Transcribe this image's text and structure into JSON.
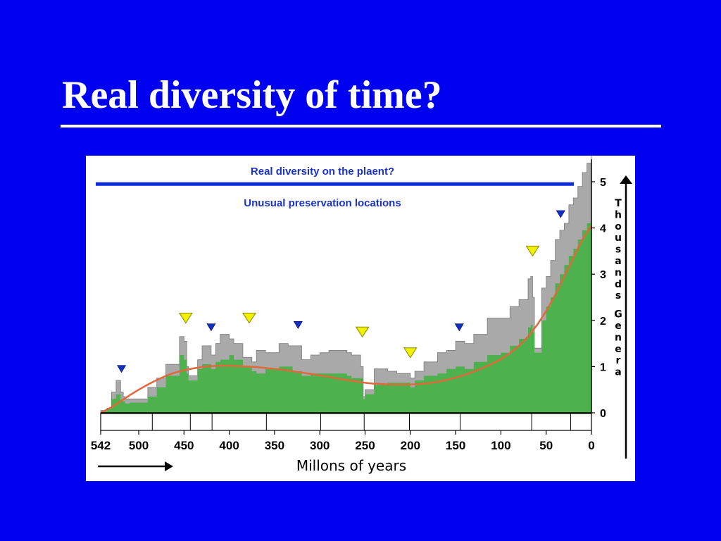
{
  "slide": {
    "title": "Real diversity of time?"
  },
  "colors": {
    "background": "#0000f0",
    "panel": "#ffffff",
    "real_diversity_line": "#0b2bdd",
    "observed_fill": "#a9a9a9",
    "sampled_fill": "#4db24d",
    "trend_line": "#e0683a",
    "marker_yellow": "#f2f200",
    "marker_blue": "#1030c0",
    "label_blue": "#1a33c7"
  },
  "chart_data": {
    "type": "area",
    "title": "",
    "xlabel": "Millons of years",
    "ylabel": "Thousands Genera",
    "x_reversed": true,
    "xlim": [
      542,
      0
    ],
    "ylim": [
      0,
      5.5
    ],
    "x_ticks": [
      542,
      500,
      450,
      400,
      350,
      300,
      250,
      200,
      150,
      100,
      50,
      0
    ],
    "y_ticks": [
      0,
      1,
      2,
      3,
      4,
      5
    ],
    "annotations": [
      {
        "text": "Real diversity on the plaent?",
        "kind": "horizontal-line",
        "y": 4.95
      },
      {
        "text": "Unusual preservation locations",
        "kind": "label"
      }
    ],
    "series": [
      {
        "kind": "area",
        "x": [
          542,
          535,
          530,
          525,
          520,
          517,
          515,
          510,
          500,
          490,
          480,
          470,
          455,
          450,
          447,
          445,
          435,
          430,
          420,
          415,
          410,
          400,
          395,
          385,
          375,
          370,
          360,
          345,
          335,
          320,
          310,
          300,
          290,
          270,
          265,
          255,
          252,
          250,
          240,
          225,
          215,
          205,
          200,
          195,
          185,
          170,
          160,
          150,
          140,
          130,
          115,
          100,
          90,
          80,
          70,
          67,
          65,
          63,
          55,
          50,
          45,
          40,
          35,
          30,
          25,
          20,
          15,
          10,
          5,
          0
        ],
        "y": [
          0.05,
          0.1,
          0.45,
          0.7,
          0.45,
          0.35,
          0.3,
          0.3,
          0.3,
          0.55,
          0.75,
          1.05,
          1.65,
          1.55,
          1.0,
          0.8,
          1.15,
          1.45,
          1.25,
          1.5,
          1.7,
          1.6,
          1.5,
          1.2,
          1.1,
          1.35,
          1.3,
          1.5,
          1.45,
          1.15,
          1.25,
          1.3,
          1.35,
          1.3,
          1.25,
          1.0,
          0.35,
          0.5,
          0.95,
          0.9,
          0.85,
          0.85,
          0.75,
          0.9,
          1.1,
          1.3,
          1.35,
          1.55,
          1.5,
          1.7,
          2.05,
          2.05,
          2.3,
          2.45,
          2.9,
          2.95,
          2.5,
          1.4,
          2.7,
          2.95,
          3.3,
          3.75,
          3.95,
          4.1,
          4.5,
          4.65,
          4.9,
          5.2,
          5.4,
          5.6
        ]
      },
      {
        "kind": "area",
        "x": [
          542,
          535,
          530,
          525,
          520,
          515,
          510,
          500,
          490,
          480,
          470,
          455,
          450,
          447,
          445,
          435,
          430,
          420,
          415,
          410,
          400,
          395,
          385,
          375,
          370,
          360,
          345,
          330,
          320,
          310,
          300,
          290,
          270,
          265,
          255,
          252,
          250,
          240,
          225,
          215,
          205,
          200,
          195,
          185,
          170,
          160,
          150,
          140,
          130,
          115,
          100,
          90,
          80,
          70,
          67,
          65,
          63,
          55,
          50,
          45,
          40,
          35,
          30,
          25,
          20,
          15,
          10,
          5,
          0
        ],
        "y": [
          0.03,
          0.08,
          0.3,
          0.4,
          0.25,
          0.2,
          0.22,
          0.22,
          0.35,
          0.55,
          0.8,
          1.25,
          1.15,
          0.85,
          0.7,
          0.95,
          1.05,
          0.95,
          1.1,
          1.15,
          1.25,
          1.15,
          1.0,
          0.9,
          0.85,
          0.95,
          1.0,
          0.9,
          0.8,
          0.85,
          0.85,
          0.85,
          0.8,
          0.75,
          0.75,
          0.3,
          0.4,
          0.6,
          0.65,
          0.65,
          0.65,
          0.55,
          0.7,
          0.8,
          0.85,
          0.95,
          1.0,
          0.95,
          1.1,
          1.25,
          1.3,
          1.45,
          1.6,
          1.85,
          1.9,
          1.75,
          1.3,
          2.0,
          2.3,
          2.5,
          2.8,
          3.0,
          3.2,
          3.4,
          3.55,
          3.75,
          3.95,
          4.1,
          4.25
        ]
      },
      {
        "kind": "line",
        "x": [
          542,
          530,
          520,
          510,
          500,
          490,
          480,
          470,
          460,
          450,
          440,
          430,
          420,
          410,
          400,
          390,
          380,
          370,
          360,
          350,
          340,
          330,
          320,
          310,
          300,
          290,
          280,
          270,
          260,
          250,
          240,
          230,
          220,
          210,
          200,
          190,
          180,
          170,
          160,
          150,
          140,
          130,
          120,
          110,
          100,
          90,
          80,
          70,
          60,
          50,
          40,
          30,
          20,
          10,
          0
        ],
        "y": [
          0.0,
          0.12,
          0.25,
          0.38,
          0.5,
          0.61,
          0.71,
          0.8,
          0.87,
          0.92,
          0.96,
          0.99,
          1.01,
          1.02,
          1.02,
          1.01,
          1.0,
          0.99,
          0.97,
          0.95,
          0.93,
          0.9,
          0.87,
          0.84,
          0.81,
          0.78,
          0.74,
          0.71,
          0.68,
          0.65,
          0.63,
          0.62,
          0.61,
          0.61,
          0.61,
          0.62,
          0.64,
          0.67,
          0.71,
          0.76,
          0.82,
          0.89,
          0.97,
          1.06,
          1.16,
          1.29,
          1.45,
          1.65,
          1.9,
          2.2,
          2.55,
          2.95,
          3.35,
          3.75,
          4.05
        ]
      }
    ],
    "markers": [
      {
        "x": 519,
        "y": 0.95,
        "color": "blue"
      },
      {
        "x": 448,
        "y": 2.05,
        "color": "yellow"
      },
      {
        "x": 420,
        "y": 1.85,
        "color": "blue"
      },
      {
        "x": 378,
        "y": 2.05,
        "color": "yellow"
      },
      {
        "x": 324,
        "y": 1.9,
        "color": "blue"
      },
      {
        "x": 253,
        "y": 1.75,
        "color": "yellow"
      },
      {
        "x": 200,
        "y": 1.3,
        "color": "yellow"
      },
      {
        "x": 146,
        "y": 1.85,
        "color": "blue"
      },
      {
        "x": 65,
        "y": 3.5,
        "color": "yellow"
      },
      {
        "x": 34,
        "y": 4.3,
        "color": "blue"
      }
    ]
  }
}
